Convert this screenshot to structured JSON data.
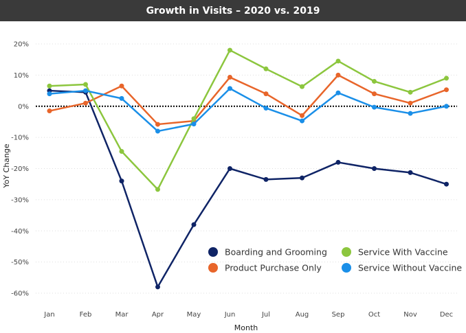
{
  "chart_data": {
    "type": "line",
    "title": "Growth in Visits – 2020 vs. 2019",
    "xlabel": "Month",
    "ylabel": "YoY Change",
    "categories": [
      "Jan",
      "Feb",
      "Mar",
      "Apr",
      "May",
      "Jun",
      "Jul",
      "Aug",
      "Sep",
      "Oct",
      "Nov",
      "Dec"
    ],
    "ylim": [
      -60,
      20
    ],
    "yticks": [
      "20%",
      "10%",
      "0%",
      "-10%",
      "-20%",
      "-30%",
      "-40%",
      "-50%",
      "-60%"
    ],
    "grid": true,
    "zero_line": "dotted",
    "legend_position": "bottom-right",
    "series": [
      {
        "name": "Boarding and Grooming",
        "color": "#0f2466",
        "values": [
          5,
          4.5,
          -24,
          -58,
          -38,
          -20,
          -23.5,
          -23,
          -18,
          -20,
          -21.3,
          -25
        ]
      },
      {
        "name": "Product Purchase Only",
        "color": "#e8652a",
        "values": [
          -1.5,
          1,
          6.5,
          -5.8,
          -4.7,
          9.3,
          4,
          -3,
          10,
          4,
          1,
          5.3
        ]
      },
      {
        "name": "Service With Vaccine",
        "color": "#8cc63e",
        "values": [
          6.5,
          7,
          -14.5,
          -26.7,
          -4,
          18,
          12,
          6.3,
          14.5,
          8,
          4.5,
          9
        ]
      },
      {
        "name": "Service Without Vaccine",
        "color": "#1a8fe8",
        "values": [
          4,
          5,
          2.5,
          -8,
          -5.7,
          5.7,
          -0.6,
          -4.7,
          4.3,
          -0.3,
          -2.3,
          0
        ]
      }
    ]
  }
}
